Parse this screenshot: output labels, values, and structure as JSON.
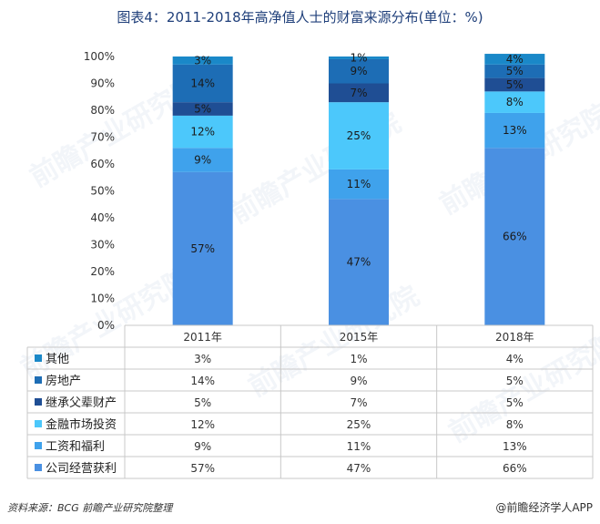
{
  "chart_data": {
    "type": "bar",
    "stacked": true,
    "percent": true,
    "title": "图表4：2011-2018年高净值人士的财富来源分布(单位：%)",
    "categories": [
      "2011年",
      "2015年",
      "2018年"
    ],
    "ylim": [
      0,
      100
    ],
    "yticks": [
      "0%",
      "10%",
      "20%",
      "30%",
      "40%",
      "50%",
      "60%",
      "70%",
      "80%",
      "90%",
      "100%"
    ],
    "series": [
      {
        "name": "公司经营获利",
        "color": "#4a90e2",
        "values": [
          57,
          47,
          66
        ],
        "labels": [
          "57%",
          "47%",
          "66%"
        ]
      },
      {
        "name": "工资和福利",
        "color": "#3fa2ec",
        "values": [
          9,
          11,
          13
        ],
        "labels": [
          "9%",
          "11%",
          "13%"
        ]
      },
      {
        "name": "金融市场投资",
        "color": "#4cc8fb",
        "values": [
          12,
          25,
          8
        ],
        "labels": [
          "12%",
          "25%",
          "8%"
        ]
      },
      {
        "name": "继承父辈财产",
        "color": "#1f4e94",
        "values": [
          5,
          7,
          5
        ],
        "labels": [
          "5%",
          "7%",
          "5%"
        ]
      },
      {
        "name": "房地产",
        "color": "#1d6db5",
        "values": [
          14,
          9,
          5
        ],
        "labels": [
          "14%",
          "9%",
          "5%"
        ]
      },
      {
        "name": "其他",
        "color": "#1a88c8",
        "values": [
          3,
          1,
          4
        ],
        "labels": [
          "3%",
          "1%",
          "4%"
        ]
      }
    ]
  },
  "source": "资料来源：BCG 前瞻产业研究院整理",
  "credit": "@前瞻经济学人APP",
  "watermark": "前瞻产业研究院"
}
